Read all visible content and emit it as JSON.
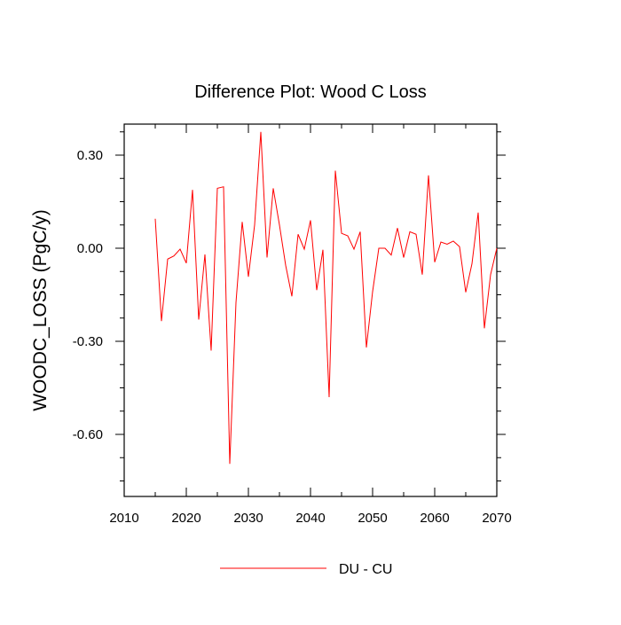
{
  "chart_data": {
    "type": "line",
    "title": "Difference Plot: Wood C Loss",
    "xlabel": "",
    "ylabel": "WOODC_LOSS  (PgC/y)",
    "xlim": [
      2010,
      2070
    ],
    "ylim": [
      -0.8,
      0.4
    ],
    "x_ticks": [
      2010,
      2020,
      2030,
      2040,
      2050,
      2060,
      2070
    ],
    "x_tick_labels": [
      "2010",
      "2020",
      "2030",
      "2040",
      "2050",
      "2060",
      "2070"
    ],
    "y_ticks": [
      0.3,
      0.0,
      -0.3,
      -0.6
    ],
    "y_tick_labels": [
      "0.30",
      "0.00",
      "-0.30",
      "-0.60"
    ],
    "grid": false,
    "legend_position": "bottom-center",
    "series": [
      {
        "name": "DU - CU",
        "color": "#ff0000",
        "x": [
          2015,
          2016,
          2017,
          2018,
          2019,
          2020,
          2021,
          2022,
          2023,
          2024,
          2025,
          2026,
          2027,
          2028,
          2029,
          2030,
          2031,
          2032,
          2033,
          2034,
          2035,
          2036,
          2037,
          2038,
          2039,
          2040,
          2041,
          2042,
          2043,
          2044,
          2045,
          2046,
          2047,
          2048,
          2049,
          2050,
          2051,
          2052,
          2053,
          2054,
          2055,
          2056,
          2057,
          2058,
          2059,
          2060,
          2061,
          2062,
          2063,
          2064,
          2065,
          2066,
          2067,
          2068,
          2069,
          2070
        ],
        "values": [
          0.095,
          -0.235,
          -0.035,
          -0.025,
          -0.003,
          -0.048,
          0.188,
          -0.23,
          -0.02,
          -0.33,
          0.193,
          0.198,
          -0.695,
          -0.175,
          0.085,
          -0.092,
          0.075,
          0.375,
          -0.03,
          0.193,
          0.075,
          -0.055,
          -0.155,
          0.045,
          -0.003,
          0.09,
          -0.135,
          -0.005,
          -0.48,
          0.25,
          0.048,
          0.04,
          -0.003,
          0.053,
          -0.32,
          -0.14,
          0.0,
          0.0,
          -0.022,
          0.065,
          -0.03,
          0.053,
          0.045,
          -0.085,
          0.235,
          -0.045,
          0.02,
          0.013,
          0.023,
          0.005,
          -0.142,
          -0.05,
          0.115,
          -0.258,
          -0.085,
          0.0
        ]
      }
    ]
  }
}
